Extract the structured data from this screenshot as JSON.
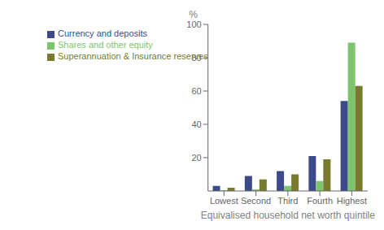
{
  "chart_data": {
    "type": "bar",
    "categories": [
      "Lowest",
      "Second",
      "Third",
      "Fourth",
      "Highest"
    ],
    "series": [
      {
        "name": "Currency and deposits",
        "color": "#3d4a8a",
        "values": [
          3,
          9,
          12,
          21,
          54
        ]
      },
      {
        "name": "Shares and other equity",
        "color": "#7dc46e",
        "values": [
          0.5,
          1,
          3,
          6,
          89
        ]
      },
      {
        "name": "Superannuation & Insurance reserves",
        "color": "#7a7a2e",
        "values": [
          2,
          7,
          10,
          19,
          63
        ]
      }
    ],
    "xlabel": "Equivalised household net worth quintile",
    "ylabel": "%",
    "ylim": [
      0,
      100
    ],
    "yticks": [
      20,
      40,
      60,
      80,
      100
    ],
    "legend": "upper left",
    "grid": false
  }
}
